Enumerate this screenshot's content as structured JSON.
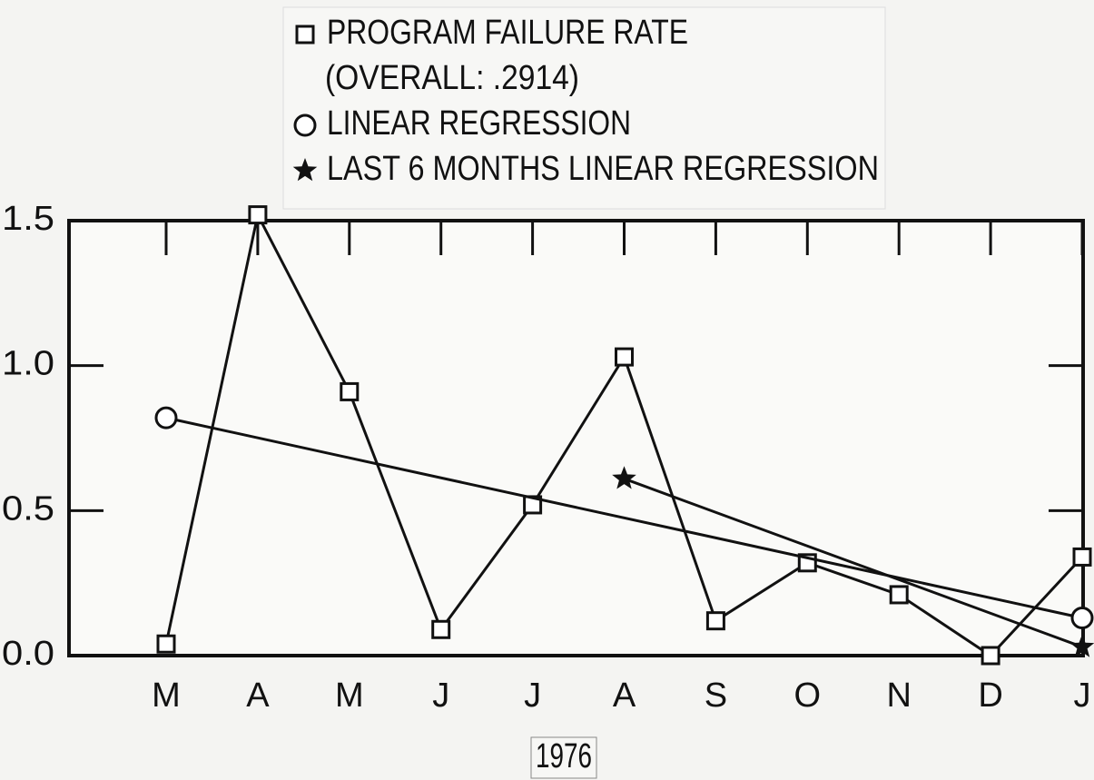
{
  "chart_data": {
    "type": "line",
    "x_label": "1976",
    "annotation": "(OVERALL: .2914)",
    "categories": [
      "M",
      "A",
      "M",
      "J",
      "J",
      "A",
      "S",
      "O",
      "N",
      "D",
      "J"
    ],
    "series": [
      {
        "name": "PROGRAM FAILURE RATE",
        "color": "#111111",
        "marker": "square",
        "connect_gaps": false,
        "values": [
          0.04,
          1.52,
          0.91,
          0.09,
          0.52,
          1.03,
          0.12,
          0.32,
          0.21,
          0.0,
          0.34
        ]
      },
      {
        "name": "LINEAR REGRESSION",
        "color": "#111111",
        "marker": "circle",
        "connect_gaps": true,
        "values": [
          0.82,
          null,
          null,
          null,
          null,
          null,
          null,
          null,
          null,
          null,
          0.13
        ]
      },
      {
        "name": "LAST 6 MONTHS LINEAR REGRESSION",
        "color": "#111111",
        "marker": "star",
        "connect_gaps": true,
        "values": [
          null,
          null,
          null,
          null,
          null,
          0.61,
          null,
          null,
          null,
          null,
          0.03
        ]
      }
    ],
    "ylim": [
      0,
      1.5
    ],
    "yticks": [
      {
        "value": 0,
        "label": "0.0"
      },
      0.5,
      {
        "value": 1,
        "label": "1.0"
      },
      {
        "value": 1.5,
        "label": "1.5"
      }
    ],
    "grid": false
  }
}
